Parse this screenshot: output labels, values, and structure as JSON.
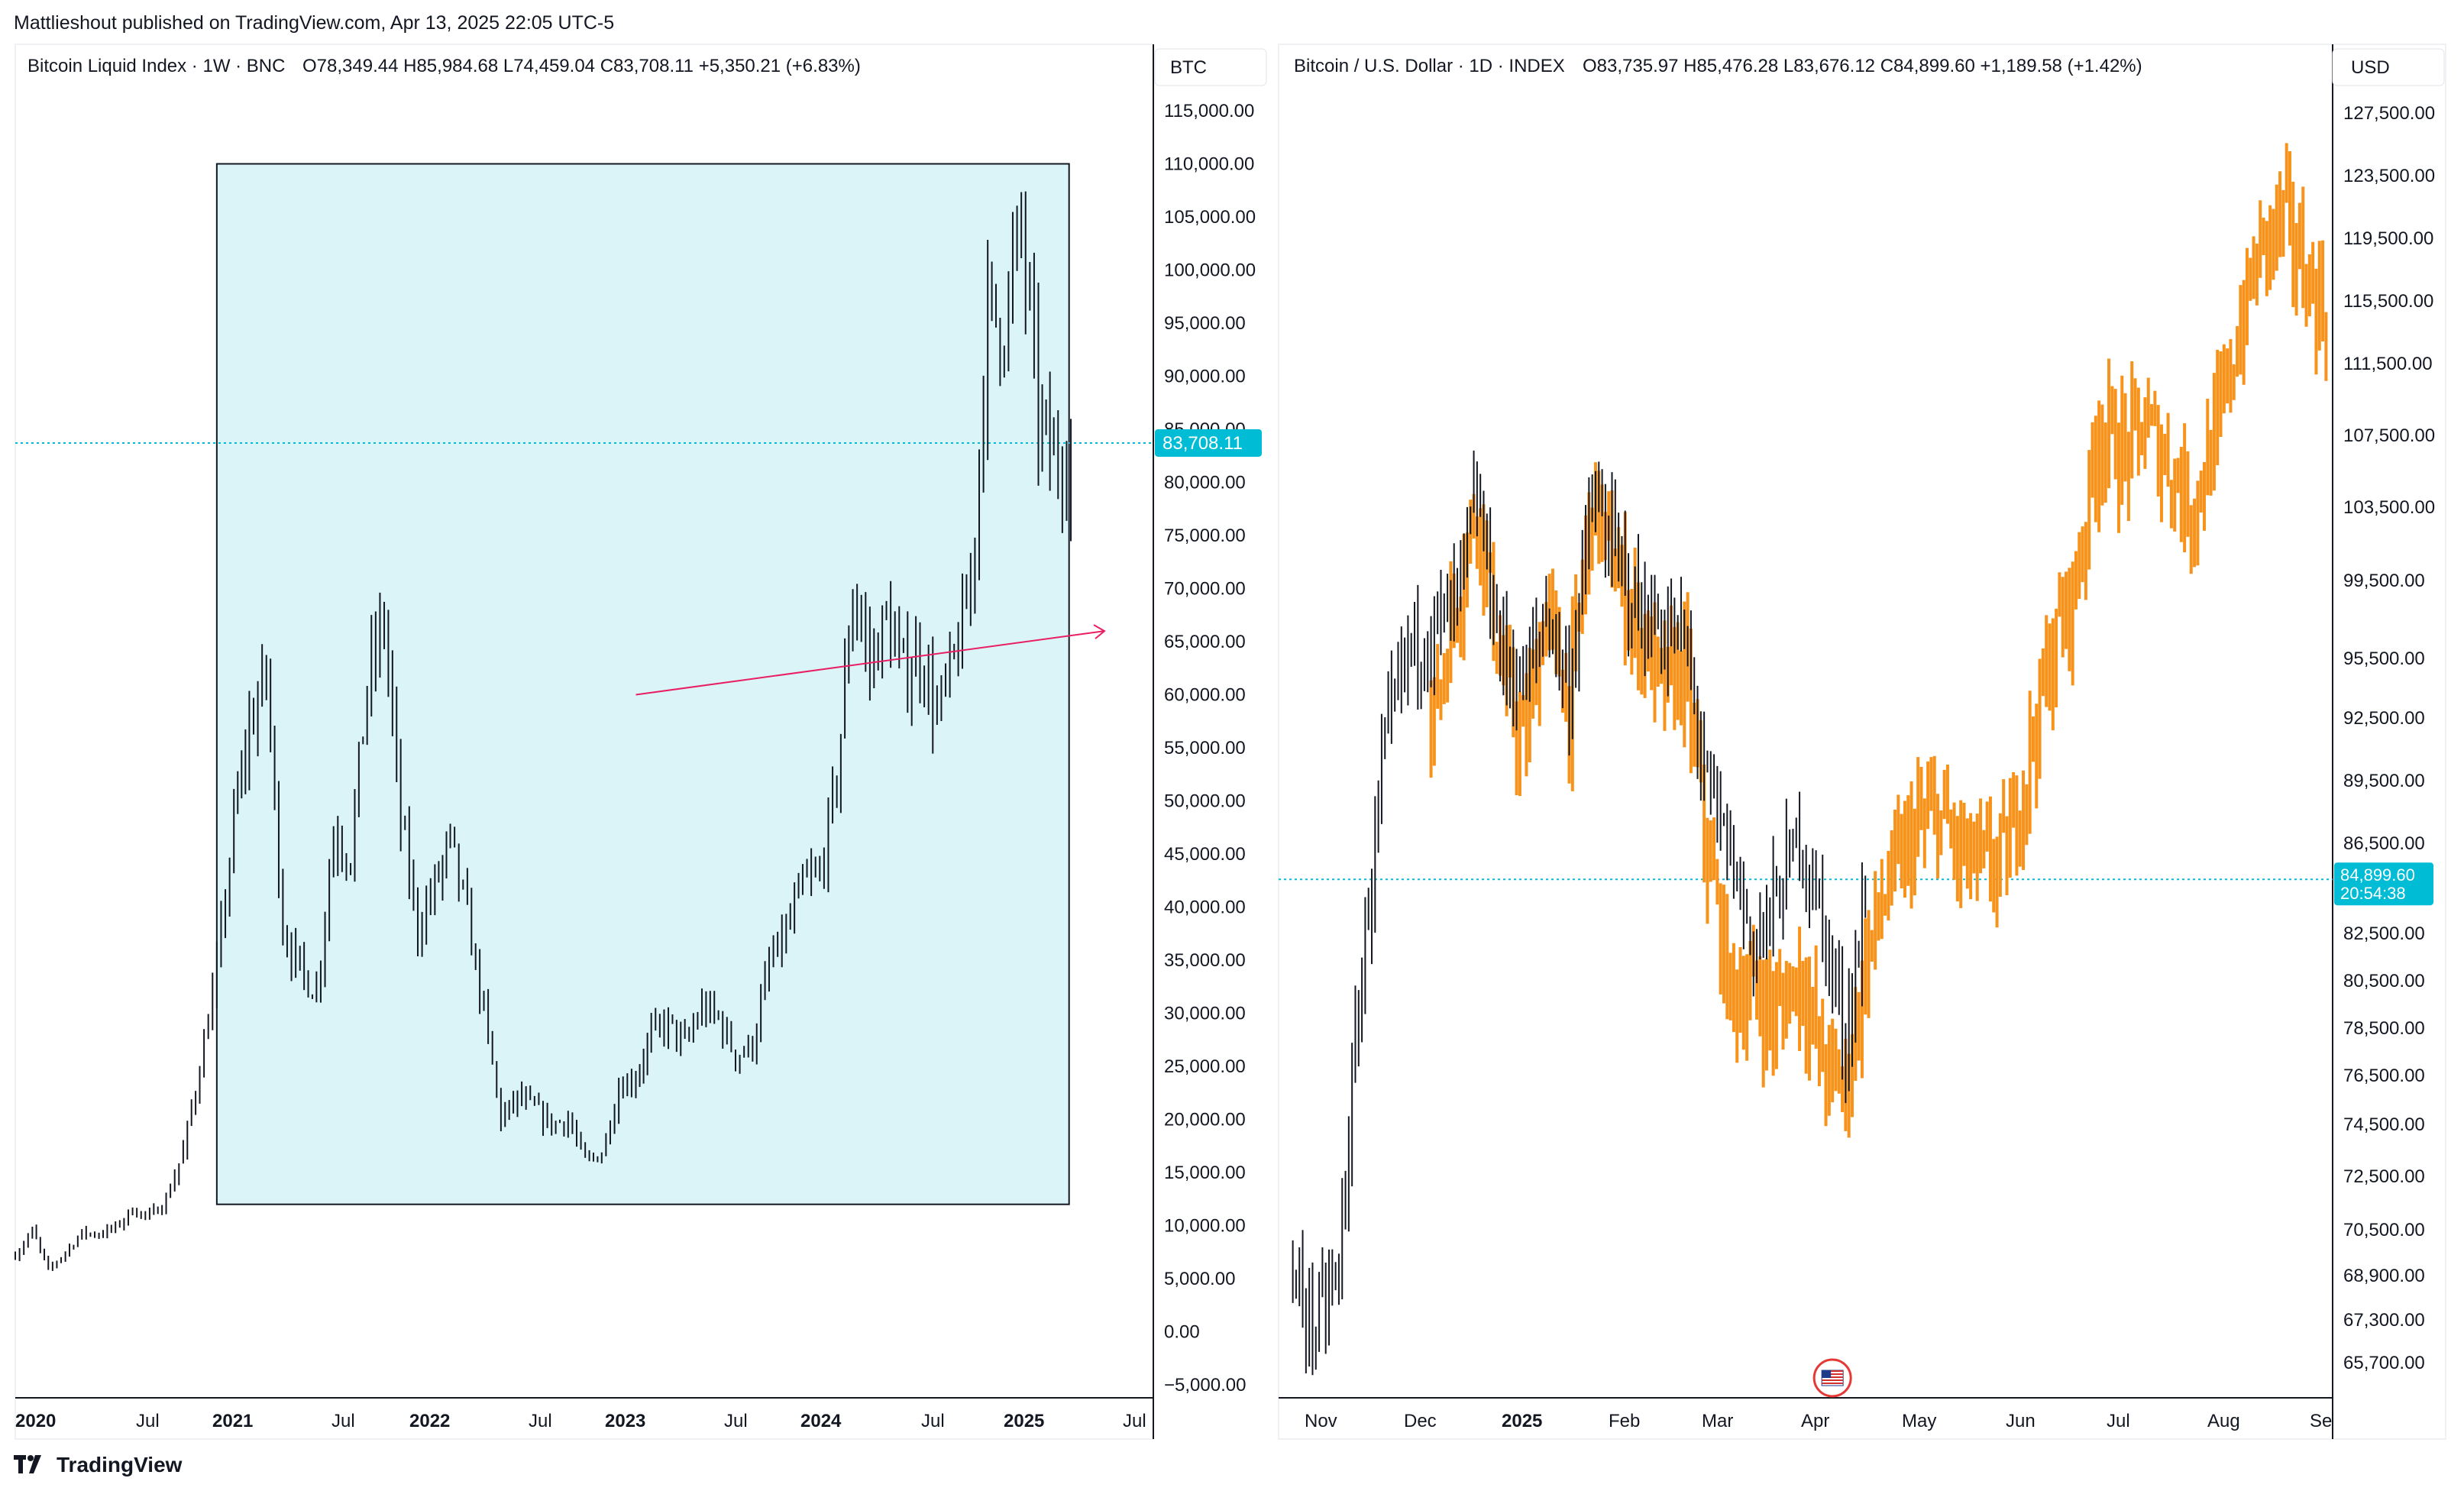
{
  "header": {
    "publisher_line": "Mattlieshout published on TradingView.com, Apr 13, 2025 22:05 UTC-5"
  },
  "footer": {
    "brand": "TradingView"
  },
  "colors": {
    "candle": "#131722",
    "orange_series": "#f7931a",
    "box_fill": "#daf4f8",
    "price_label_bg": "#00bcd4",
    "arrow": "#e91e63",
    "price_line": "#00bcd4",
    "grid_axis": "#131722"
  },
  "icons": [
    "tradingview-logo-icon",
    "us-flag-event-icon"
  ],
  "chart_data": [
    {
      "type": "candlestick",
      "title": "Bitcoin Liquid Index · 1W · BNC",
      "ohlc": {
        "O": "78,349.44",
        "H": "85,984.68",
        "L": "74,459.04",
        "C": "83,708.11",
        "change": "+5,350.21 (+6.83%)"
      },
      "axis_currency": "BTC",
      "ylim": [
        -5000,
        115000
      ],
      "yticks": [
        "115,000.00",
        "110,000.00",
        "105,000.00",
        "100,000.00",
        "95,000.00",
        "90,000.00",
        "85,000.00",
        "80,000.00",
        "75,000.00",
        "70,000.00",
        "65,000.00",
        "60,000.00",
        "55,000.00",
        "50,000.00",
        "45,000.00",
        "40,000.00",
        "35,000.00",
        "30,000.00",
        "25,000.00",
        "20,000.00",
        "15,000.00",
        "10,000.00",
        "5,000.00",
        "0.00",
        "−5,000.00"
      ],
      "xticks": [
        "2020",
        "Jul",
        "2021",
        "Jul",
        "2022",
        "Jul",
        "2023",
        "Jul",
        "2024",
        "Jul",
        "2025",
        "Jul"
      ],
      "last_price_label": "83,708.11",
      "series": [
        {
          "name": "price",
          "points": [
            [
              "2020-01",
              7200
            ],
            [
              "2020-02",
              9500
            ],
            [
              "2020-03",
              5800
            ],
            [
              "2020-04",
              7500
            ],
            [
              "2020-05",
              9300
            ],
            [
              "2020-06",
              9200
            ],
            [
              "2020-07",
              9800
            ],
            [
              "2020-08",
              11500
            ],
            [
              "2020-09",
              10800
            ],
            [
              "2020-10",
              12500
            ],
            [
              "2020-11",
              17000
            ],
            [
              "2020-12",
              25000
            ],
            [
              "2021-01",
              34000
            ],
            [
              "2021-02",
              48000
            ],
            [
              "2021-03",
              57000
            ],
            [
              "2021-04",
              62000
            ],
            [
              "2021-05",
              38000
            ],
            [
              "2021-06",
              34000
            ],
            [
              "2021-07",
              32000
            ],
            [
              "2021-08",
              47000
            ],
            [
              "2021-09",
              45000
            ],
            [
              "2021-10",
              61000
            ],
            [
              "2021-11",
              67000
            ],
            [
              "2021-12",
              48000
            ],
            [
              "2022-01",
              38000
            ],
            [
              "2022-02",
              42000
            ],
            [
              "2022-03",
              46000
            ],
            [
              "2022-04",
              39000
            ],
            [
              "2022-05",
              30000
            ],
            [
              "2022-06",
              20000
            ],
            [
              "2022-07",
              22000
            ],
            [
              "2022-08",
              21000
            ],
            [
              "2022-09",
              19500
            ],
            [
              "2022-10",
              20000
            ],
            [
              "2022-11",
              16000
            ],
            [
              "2022-12",
              16800
            ],
            [
              "2023-01",
              23000
            ],
            [
              "2023-02",
              24000
            ],
            [
              "2023-03",
              28000
            ],
            [
              "2023-04",
              29000
            ],
            [
              "2023-05",
              27000
            ],
            [
              "2023-06",
              30500
            ],
            [
              "2023-07",
              29500
            ],
            [
              "2023-08",
              26000
            ],
            [
              "2023-09",
              27000
            ],
            [
              "2023-10",
              34500
            ],
            [
              "2023-11",
              37500
            ],
            [
              "2023-12",
              42000
            ],
            [
              "2024-01",
              43000
            ],
            [
              "2024-02",
              52000
            ],
            [
              "2024-03",
              70000
            ],
            [
              "2024-04",
              63000
            ],
            [
              "2024-05",
              67000
            ],
            [
              "2024-06",
              62000
            ],
            [
              "2024-07",
              64000
            ],
            [
              "2024-08",
              58000
            ],
            [
              "2024-09",
              63000
            ],
            [
              "2024-10",
              70000
            ],
            [
              "2024-11",
              96000
            ],
            [
              "2024-12",
              95000
            ],
            [
              "2025-01",
              104000
            ],
            [
              "2025-02",
              86000
            ],
            [
              "2025-03",
              82000
            ],
            [
              "2025-04",
              83708
            ]
          ]
        }
      ],
      "annotations": [
        {
          "type": "rectangle",
          "from": [
            "2021-01",
            12000
          ],
          "to": [
            "2025-03",
            110000
          ]
        },
        {
          "type": "arrow",
          "from": [
            "2023-02",
            60000
          ],
          "to": [
            "2025-06",
            66000
          ]
        },
        {
          "type": "horizontal_price_line",
          "value": 83708.11
        }
      ]
    },
    {
      "type": "candlestick+line",
      "title": "Bitcoin / U.S. Dollar · 1D · INDEX",
      "ohlc": {
        "O": "83,735.97",
        "H": "85,476.28",
        "L": "83,676.12",
        "C": "84,899.60",
        "change": "+1,189.58 (+1.42%)"
      },
      "axis_currency": "USD",
      "ylim": [
        64500,
        129000
      ],
      "yticks": [
        "127,500.00",
        "123,500.00",
        "119,500.00",
        "115,500.00",
        "111,500.00",
        "107,500.00",
        "103,500.00",
        "99,500.00",
        "95,500.00",
        "92,500.00",
        "89,500.00",
        "86,500.00",
        "82,500.00",
        "80,500.00",
        "78,500.00",
        "76,500.00",
        "74,500.00",
        "72,500.00",
        "70,500.00",
        "68,900.00",
        "67,300.00",
        "65,700.00"
      ],
      "xticks": [
        "Nov",
        "Dec",
        "2025",
        "Feb",
        "Mar",
        "Apr",
        "May",
        "Jun",
        "Jul",
        "Aug",
        "Se"
      ],
      "last_price_label": "84,899.60",
      "countdown_label": "20:54:38",
      "series": [
        {
          "name": "BTCUSD daily",
          "color": "#131722",
          "points": [
            [
              "2024-10-20",
              68500
            ],
            [
              "2024-10-27",
              67000
            ],
            [
              "2024-11-03",
              69000
            ],
            [
              "2024-11-10",
              81000
            ],
            [
              "2024-11-17",
              91000
            ],
            [
              "2024-11-24",
              96000
            ],
            [
              "2024-12-01",
              97000
            ],
            [
              "2024-12-08",
              98000
            ],
            [
              "2024-12-15",
              104000
            ],
            [
              "2024-12-22",
              96000
            ],
            [
              "2024-12-29",
              94000
            ],
            [
              "2025-01-05",
              98000
            ],
            [
              "2025-01-12",
              94000
            ],
            [
              "2025-01-19",
              104000
            ],
            [
              "2025-01-26",
              101000
            ],
            [
              "2025-02-02",
              98000
            ],
            [
              "2025-02-09",
              97000
            ],
            [
              "2025-02-16",
              96500
            ],
            [
              "2025-02-23",
              89000
            ],
            [
              "2025-03-02",
              86000
            ],
            [
              "2025-03-09",
              82000
            ],
            [
              "2025-03-16",
              84000
            ],
            [
              "2025-03-23",
              87000
            ],
            [
              "2025-03-30",
              83000
            ],
            [
              "2025-04-06",
              78000
            ],
            [
              "2025-04-13",
              84900
            ]
          ]
        },
        {
          "name": "overlay",
          "color": "#f7931a",
          "points": [
            [
              "2024-12-01",
              92000
            ],
            [
              "2024-12-08",
              98000
            ],
            [
              "2024-12-15",
              104000
            ],
            [
              "2024-12-22",
              95000
            ],
            [
              "2024-12-29",
              91000
            ],
            [
              "2025-01-05",
              98000
            ],
            [
              "2025-01-12",
              93000
            ],
            [
              "2025-01-19",
              104000
            ],
            [
              "2025-01-26",
              100000
            ],
            [
              "2025-02-02",
              97000
            ],
            [
              "2025-02-09",
              94000
            ],
            [
              "2025-02-16",
              95000
            ],
            [
              "2025-02-23",
              86000
            ],
            [
              "2025-03-02",
              80000
            ],
            [
              "2025-03-09",
              80000
            ],
            [
              "2025-03-16",
              79000
            ],
            [
              "2025-03-23",
              81000
            ],
            [
              "2025-03-30",
              77000
            ],
            [
              "2025-04-06",
              76000
            ],
            [
              "2025-04-13",
              82000
            ],
            [
              "2025-04-20",
              85000
            ],
            [
              "2025-04-27",
              87000
            ],
            [
              "2025-05-04",
              88000
            ],
            [
              "2025-05-11",
              86000
            ],
            [
              "2025-05-18",
              85500
            ],
            [
              "2025-05-25",
              86000
            ],
            [
              "2025-06-01",
              91000
            ],
            [
              "2025-06-08",
              96000
            ],
            [
              "2025-06-15",
              99500
            ],
            [
              "2025-06-22",
              108000
            ],
            [
              "2025-06-29",
              106500
            ],
            [
              "2025-07-06",
              108000
            ],
            [
              "2025-07-13",
              106000
            ],
            [
              "2025-07-20",
              103500
            ],
            [
              "2025-07-27",
              107000
            ],
            [
              "2025-08-03",
              113000
            ],
            [
              "2025-08-10",
              119000
            ],
            [
              "2025-08-17",
              121000
            ],
            [
              "2025-08-24",
              117000
            ],
            [
              "2025-08-31",
              114000
            ]
          ]
        }
      ],
      "annotations": [
        {
          "type": "horizontal_price_line",
          "value": 84899.6
        },
        {
          "type": "event_flag",
          "date": "2025-04-02"
        }
      ]
    }
  ]
}
